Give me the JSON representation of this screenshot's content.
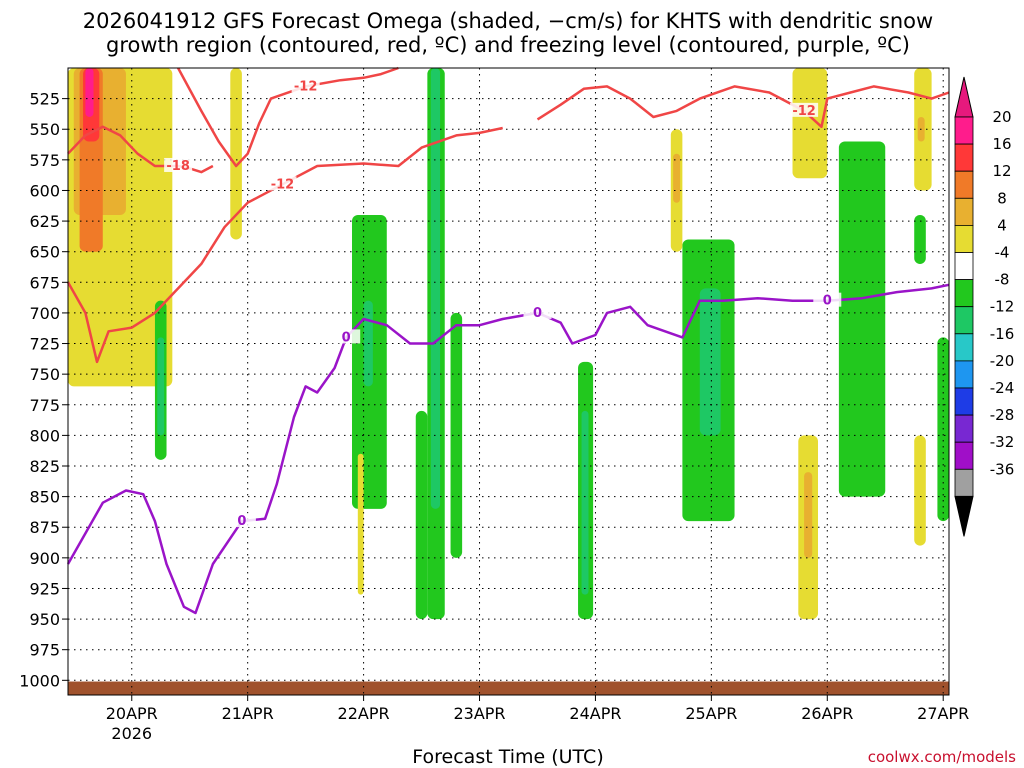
{
  "chart_data": {
    "type": "heatmap",
    "title_line1": "2026041912 GFS Forecast Omega (shaded, −cm/s) for KHTS with dendritic snow",
    "title_line2": "growth region (contoured, red, ºC) and freezing level (contoured, purple, ºC)",
    "xlabel": "Forecast Time (UTC)",
    "credit": "coolwx.com/models",
    "x_range_days": [
      19.45,
      27.05
    ],
    "y_range_hpa": [
      500,
      1012
    ],
    "y_ticks": [
      525,
      550,
      575,
      600,
      625,
      650,
      675,
      700,
      725,
      750,
      775,
      800,
      825,
      850,
      875,
      900,
      925,
      950,
      975,
      1000
    ],
    "x_ticks": [
      {
        "day": 20,
        "label": "20APR",
        "sub": "2026"
      },
      {
        "day": 21,
        "label": "21APR",
        "sub": ""
      },
      {
        "day": 22,
        "label": "22APR",
        "sub": ""
      },
      {
        "day": 23,
        "label": "23APR",
        "sub": ""
      },
      {
        "day": 24,
        "label": "24APR",
        "sub": ""
      },
      {
        "day": 25,
        "label": "25APR",
        "sub": ""
      },
      {
        "day": 26,
        "label": "26APR",
        "sub": ""
      },
      {
        "day": 27,
        "label": "27APR",
        "sub": ""
      }
    ],
    "colorbar": {
      "ticks": [
        "20",
        "16",
        "12",
        "8",
        "4",
        "-4",
        "-8",
        "-12",
        "-16",
        "-20",
        "-24",
        "-28",
        "-32",
        "-36"
      ],
      "colors": [
        "#ff1c8c",
        "#ff3838",
        "#f07a28",
        "#e8b030",
        "#e6dc32",
        "#ffffff",
        "#22c81e",
        "#1ec864",
        "#28c8c8",
        "#1e96f0",
        "#1e3ce6",
        "#7828d2",
        "#a00fc8",
        "#a0a0a0"
      ],
      "top_arrow_color": "#e6197d",
      "bottom_arrow_color": "#000000"
    },
    "shaded_regions": [
      {
        "x0": 19.45,
        "x1": 20.35,
        "p0": 500,
        "p1": 760,
        "class": 4
      },
      {
        "x0": 19.5,
        "x1": 19.95,
        "p0": 500,
        "p1": 620,
        "class": 8
      },
      {
        "x0": 19.55,
        "x1": 19.75,
        "p0": 500,
        "p1": 650,
        "class": 12
      },
      {
        "x0": 19.58,
        "x1": 19.72,
        "p0": 500,
        "p1": 560,
        "class": 16
      },
      {
        "x0": 19.6,
        "x1": 19.67,
        "p0": 500,
        "p1": 540,
        "class": 20
      },
      {
        "x0": 20.2,
        "x1": 20.3,
        "p0": 690,
        "p1": 820,
        "class": -8
      },
      {
        "x0": 20.22,
        "x1": 20.28,
        "p0": 720,
        "p1": 800,
        "class": -12
      },
      {
        "x0": 20.85,
        "x1": 20.95,
        "p0": 500,
        "p1": 640,
        "class": 4
      },
      {
        "x0": 21.9,
        "x1": 22.2,
        "p0": 620,
        "p1": 860,
        "class": -8
      },
      {
        "x0": 22.0,
        "x1": 22.08,
        "p0": 690,
        "p1": 760,
        "class": -12
      },
      {
        "x0": 22.55,
        "x1": 22.7,
        "p0": 500,
        "p1": 950,
        "class": -8
      },
      {
        "x0": 22.58,
        "x1": 22.66,
        "p0": 500,
        "p1": 860,
        "class": -12
      },
      {
        "x0": 22.45,
        "x1": 22.55,
        "p0": 780,
        "p1": 950,
        "class": -8
      },
      {
        "x0": 22.75,
        "x1": 22.85,
        "p0": 700,
        "p1": 900,
        "class": -8
      },
      {
        "x0": 21.95,
        "x1": 22.0,
        "p0": 815,
        "p1": 930,
        "class": 4
      },
      {
        "x0": 23.85,
        "x1": 23.98,
        "p0": 740,
        "p1": 950,
        "class": -8
      },
      {
        "x0": 23.88,
        "x1": 23.94,
        "p0": 780,
        "p1": 930,
        "class": -12
      },
      {
        "x0": 24.75,
        "x1": 25.2,
        "p0": 640,
        "p1": 870,
        "class": -8
      },
      {
        "x0": 24.9,
        "x1": 25.08,
        "p0": 680,
        "p1": 800,
        "class": -12
      },
      {
        "x0": 24.65,
        "x1": 24.75,
        "p0": 550,
        "p1": 650,
        "class": 4
      },
      {
        "x0": 24.67,
        "x1": 24.73,
        "p0": 570,
        "p1": 610,
        "class": 8
      },
      {
        "x0": 26.1,
        "x1": 26.5,
        "p0": 560,
        "p1": 850,
        "class": -8
      },
      {
        "x0": 25.75,
        "x1": 25.92,
        "p0": 800,
        "p1": 950,
        "class": 4
      },
      {
        "x0": 25.8,
        "x1": 25.87,
        "p0": 830,
        "p1": 900,
        "class": 8
      },
      {
        "x0": 25.7,
        "x1": 26.0,
        "p0": 500,
        "p1": 590,
        "class": 4
      },
      {
        "x0": 26.75,
        "x1": 26.9,
        "p0": 500,
        "p1": 600,
        "class": 4
      },
      {
        "x0": 26.78,
        "x1": 26.84,
        "p0": 540,
        "p1": 560,
        "class": 8
      },
      {
        "x0": 26.75,
        "x1": 26.85,
        "p0": 620,
        "p1": 660,
        "class": -8
      },
      {
        "x0": 26.95,
        "x1": 27.05,
        "p0": 720,
        "p1": 870,
        "class": -8
      },
      {
        "x0": 26.75,
        "x1": 26.85,
        "p0": 800,
        "p1": 890,
        "class": 4
      }
    ],
    "dendritic_contours": [
      {
        "label": "-12",
        "points": [
          [
            19.45,
            675
          ],
          [
            19.6,
            700
          ],
          [
            19.7,
            740
          ],
          [
            19.8,
            715
          ],
          [
            20.0,
            712
          ],
          [
            20.2,
            700
          ],
          [
            20.4,
            680
          ],
          [
            20.6,
            660
          ],
          [
            20.8,
            630
          ],
          [
            21.0,
            610
          ],
          [
            21.3,
            595
          ],
          [
            21.6,
            580
          ],
          [
            22.0,
            578
          ],
          [
            22.3,
            580
          ],
          [
            22.5,
            565
          ],
          [
            22.8,
            555
          ],
          [
            23.0,
            553
          ],
          [
            23.2,
            549
          ]
        ]
      },
      {
        "label": "-12",
        "points": [
          [
            20.4,
            500
          ],
          [
            20.6,
            535
          ],
          [
            20.75,
            560
          ],
          [
            20.9,
            580
          ],
          [
            21.0,
            570
          ],
          [
            21.1,
            545
          ],
          [
            21.2,
            525
          ],
          [
            21.5,
            515
          ],
          [
            21.8,
            510
          ],
          [
            22.0,
            508
          ],
          [
            22.15,
            505
          ],
          [
            22.3,
            500
          ]
        ]
      },
      {
        "label": "-18",
        "points": [
          [
            19.45,
            570
          ],
          [
            19.6,
            555
          ],
          [
            19.75,
            548
          ],
          [
            19.9,
            555
          ],
          [
            20.05,
            570
          ],
          [
            20.2,
            580
          ],
          [
            20.4,
            580
          ],
          [
            20.5,
            582
          ],
          [
            20.6,
            585
          ],
          [
            20.7,
            580
          ]
        ]
      },
      {
        "label": "-12",
        "points": [
          [
            23.5,
            542
          ],
          [
            23.7,
            530
          ],
          [
            23.9,
            517
          ],
          [
            24.1,
            515
          ],
          [
            24.3,
            525
          ],
          [
            24.5,
            540
          ],
          [
            24.7,
            535
          ],
          [
            24.9,
            525
          ],
          [
            25.2,
            515
          ],
          [
            25.5,
            520
          ],
          [
            25.8,
            535
          ],
          [
            25.95,
            548
          ],
          [
            26.0,
            525
          ],
          [
            26.2,
            520
          ],
          [
            26.4,
            515
          ],
          [
            26.7,
            520
          ],
          [
            26.9,
            525
          ],
          [
            27.05,
            520
          ]
        ]
      }
    ],
    "freezing_contour": {
      "label": "0",
      "points": [
        [
          19.45,
          905
        ],
        [
          19.6,
          880
        ],
        [
          19.75,
          855
        ],
        [
          19.95,
          845
        ],
        [
          20.1,
          848
        ],
        [
          20.2,
          870
        ],
        [
          20.3,
          905
        ],
        [
          20.45,
          940
        ],
        [
          20.55,
          945
        ],
        [
          20.7,
          905
        ],
        [
          20.95,
          870
        ],
        [
          21.15,
          868
        ],
        [
          21.25,
          840
        ],
        [
          21.4,
          785
        ],
        [
          21.5,
          760
        ],
        [
          21.6,
          765
        ],
        [
          21.75,
          745
        ],
        [
          21.85,
          720
        ],
        [
          22.0,
          705
        ],
        [
          22.2,
          710
        ],
        [
          22.4,
          725
        ],
        [
          22.6,
          725
        ],
        [
          22.8,
          710
        ],
        [
          23.0,
          710
        ],
        [
          23.2,
          705
        ],
        [
          23.5,
          700
        ],
        [
          23.7,
          708
        ],
        [
          23.8,
          725
        ],
        [
          24.0,
          718
        ],
        [
          24.1,
          700
        ],
        [
          24.3,
          695
        ],
        [
          24.45,
          710
        ],
        [
          24.6,
          715
        ],
        [
          24.75,
          720
        ],
        [
          24.9,
          690
        ],
        [
          25.1,
          690
        ],
        [
          25.4,
          688
        ],
        [
          25.7,
          690
        ],
        [
          26.0,
          690
        ],
        [
          26.3,
          688
        ],
        [
          26.6,
          683
        ],
        [
          26.9,
          680
        ],
        [
          27.05,
          677
        ]
      ]
    },
    "terrain_color": "#a0522d"
  }
}
